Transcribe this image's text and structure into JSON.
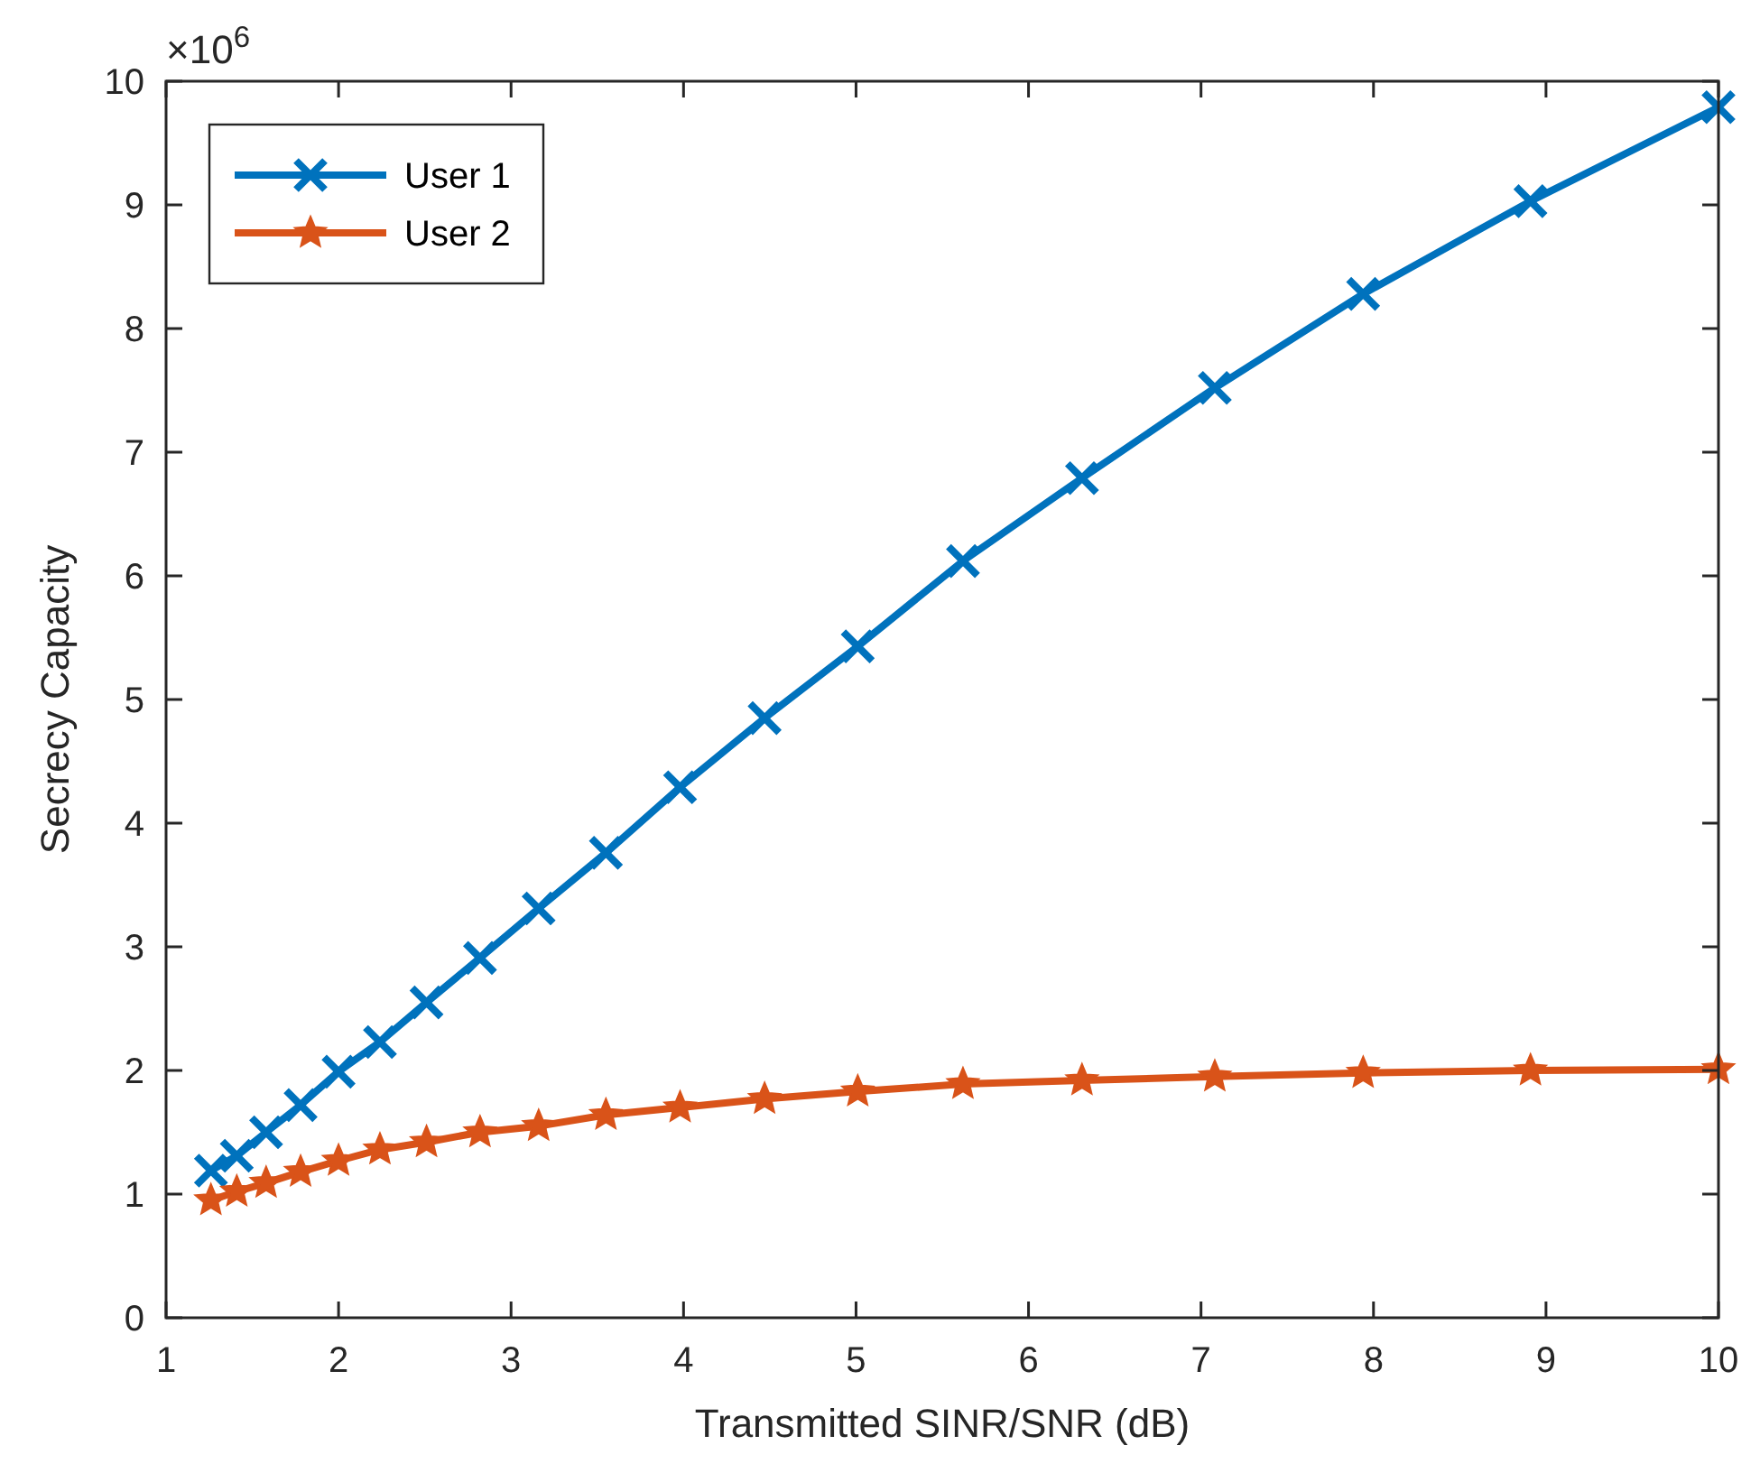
{
  "chart_data": {
    "type": "line",
    "xlabel": "Transmitted SINR/SNR (dB)",
    "ylabel": "Secrecy Capacity",
    "annotations": [
      "×10$^{6}$"
    ],
    "x": [
      1.26,
      1.41,
      1.58,
      1.78,
      2.0,
      2.24,
      2.51,
      2.82,
      3.16,
      3.55,
      3.98,
      4.47,
      5.01,
      5.62,
      6.31,
      7.08,
      7.94,
      8.91,
      10
    ],
    "series": [
      {
        "name": "User 1",
        "color": "#0072bd",
        "marker": "cross",
        "values": [
          1.19,
          1.31,
          1.5,
          1.72,
          1.99,
          2.23,
          2.55,
          2.91,
          3.31,
          3.76,
          4.29,
          4.85,
          5.43,
          6.12,
          6.79,
          7.52,
          8.28,
          9.03,
          9.79
        ]
      },
      {
        "name": "User 2",
        "color": "#d95319",
        "marker": "star",
        "values": [
          0.95,
          1.02,
          1.09,
          1.18,
          1.27,
          1.36,
          1.42,
          1.5,
          1.55,
          1.64,
          1.7,
          1.77,
          1.83,
          1.89,
          1.92,
          1.95,
          1.98,
          2.0,
          2.01
        ]
      }
    ],
    "xlim": [
      1,
      10
    ],
    "xticks": [
      1,
      2,
      3,
      4,
      5,
      6,
      7,
      8,
      9,
      10
    ],
    "ylim": [
      0,
      10
    ],
    "yticks": [
      0,
      1,
      2,
      3,
      4,
      5,
      6,
      7,
      8,
      9,
      10
    ],
    "grid": false,
    "legend": "top left",
    "line_style": "solid"
  }
}
